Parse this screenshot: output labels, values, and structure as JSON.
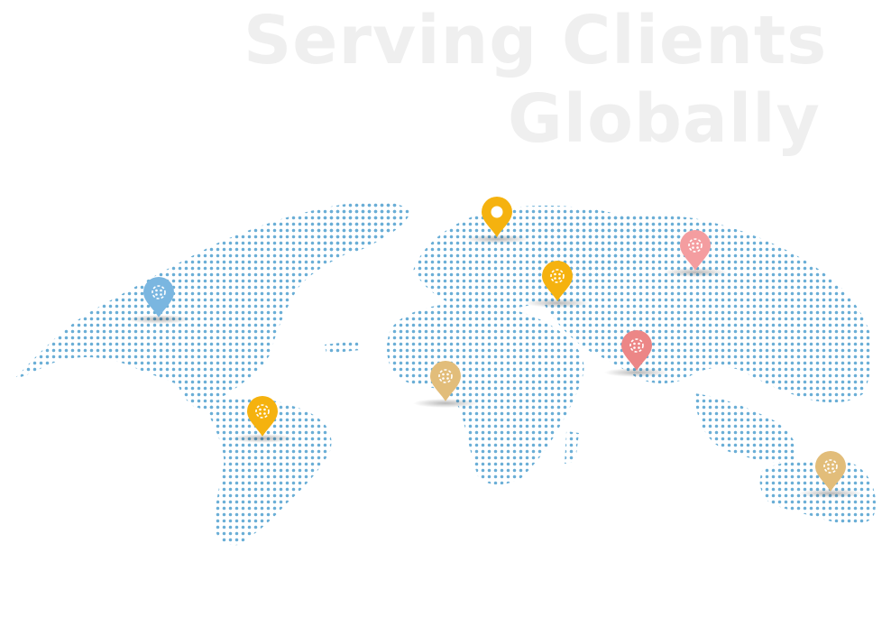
{
  "headline": {
    "line1": "Serving Clients",
    "line2": "Globally"
  },
  "colors": {
    "title": "#efefef",
    "gradient_stops": [
      "#6aaed6",
      "#b8b89a",
      "#e6bb63",
      "#eea58c",
      "#ec8a82"
    ],
    "pin_blue": "#7ab6e0",
    "pin_gold": "#f5b20f",
    "pin_tan": "#e2bd7a",
    "pin_pink": "#f49da0",
    "pin_red": "#ec8686"
  },
  "pins": [
    {
      "name": "north-america",
      "color": "pin_blue",
      "glyph": "dots"
    },
    {
      "name": "south-america",
      "color": "pin_gold",
      "glyph": "dots"
    },
    {
      "name": "europe",
      "color": "pin_gold",
      "glyph": "circle"
    },
    {
      "name": "middle-east",
      "color": "pin_gold",
      "glyph": "dots"
    },
    {
      "name": "africa",
      "color": "pin_tan",
      "glyph": "dots"
    },
    {
      "name": "russia",
      "color": "pin_pink",
      "glyph": "dots"
    },
    {
      "name": "south-asia",
      "color": "pin_red",
      "glyph": "dots"
    },
    {
      "name": "australia",
      "color": "pin_tan",
      "glyph": "dots"
    }
  ]
}
